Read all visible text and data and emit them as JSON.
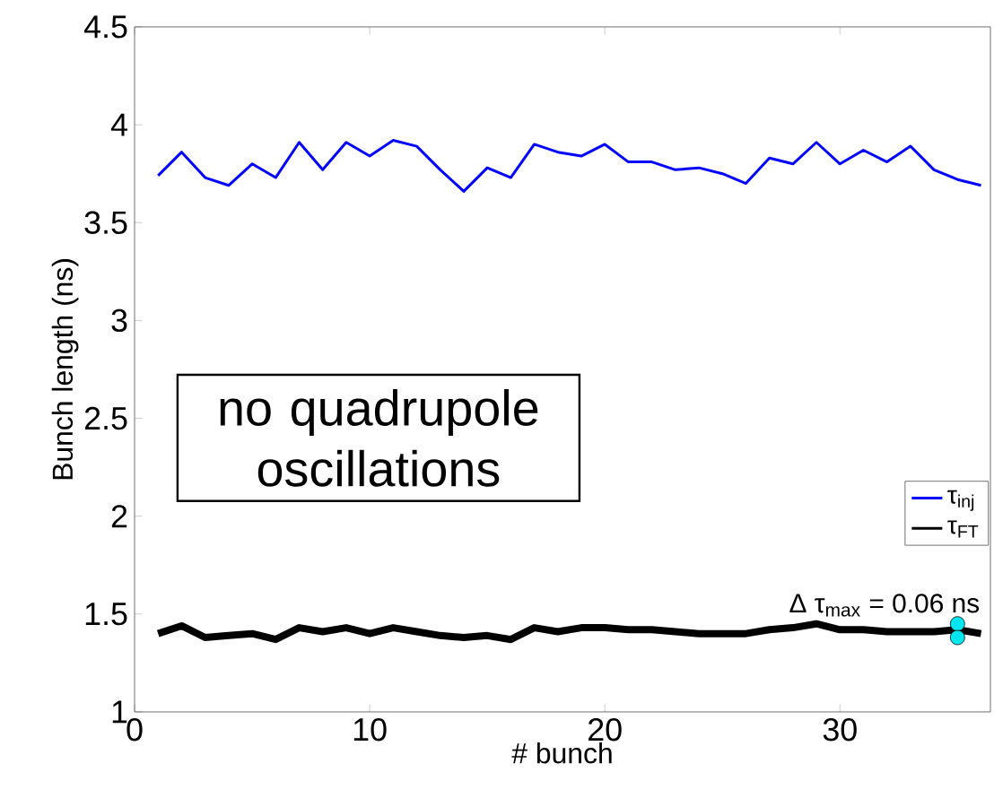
{
  "chart_data": {
    "type": "line",
    "xlabel": "# bunch",
    "ylabel": "Bunch length (ns)",
    "x": [
      1,
      2,
      3,
      4,
      5,
      6,
      7,
      8,
      9,
      10,
      11,
      12,
      13,
      14,
      15,
      16,
      17,
      18,
      19,
      20,
      21,
      22,
      23,
      24,
      25,
      26,
      27,
      28,
      29,
      30,
      31,
      32,
      33,
      34,
      35,
      36
    ],
    "series": [
      {
        "name": "τ$_{inj}$",
        "color": "#0000ff",
        "values": [
          3.74,
          3.86,
          3.73,
          3.69,
          3.8,
          3.73,
          3.91,
          3.77,
          3.91,
          3.84,
          3.92,
          3.89,
          3.77,
          3.66,
          3.78,
          3.73,
          3.9,
          3.86,
          3.84,
          3.9,
          3.81,
          3.81,
          3.77,
          3.78,
          3.75,
          3.7,
          3.83,
          3.8,
          3.91,
          3.8,
          3.87,
          3.81,
          3.89,
          3.77,
          3.72,
          3.69
        ]
      },
      {
        "name": "τ$_{FT}$",
        "color": "#000000",
        "values": [
          1.4,
          1.44,
          1.38,
          1.39,
          1.4,
          1.37,
          1.43,
          1.41,
          1.43,
          1.4,
          1.43,
          1.41,
          1.39,
          1.38,
          1.39,
          1.37,
          1.43,
          1.41,
          1.43,
          1.43,
          1.42,
          1.42,
          1.41,
          1.4,
          1.4,
          1.4,
          1.42,
          1.43,
          1.45,
          1.42,
          1.42,
          1.41,
          1.41,
          1.41,
          1.42,
          1.4
        ]
      },
      {
        "type": "scatter",
        "color": "#00e5ee",
        "marker": "circle",
        "x": [
          35,
          35
        ],
        "values": [
          1.45,
          1.38
        ]
      }
    ],
    "xlim": [
      0,
      36.4
    ],
    "ylim": [
      1,
      4.5
    ],
    "xticks": [
      0,
      10,
      20,
      30
    ],
    "yticks": [
      1,
      1.5,
      2,
      2.5,
      3,
      3.5,
      4,
      4.5
    ],
    "legend": "right",
    "grid": false,
    "annotations": [
      "no quadrupole oscillations",
      "Δ τ$_{max}$ = 0.06 ns"
    ]
  }
}
